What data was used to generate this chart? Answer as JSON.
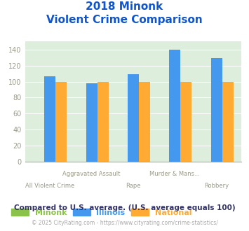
{
  "title_line1": "2018 Minonk",
  "title_line2": "Violent Crime Comparison",
  "categories": [
    "All Violent Crime",
    "Aggravated Assault",
    "Rape",
    "Murder & Mans...",
    "Robbery"
  ],
  "cat_line1": [
    "",
    "Aggravated Assault",
    "",
    "Murder & Mans...",
    ""
  ],
  "cat_line2": [
    "All Violent Crime",
    "",
    "Rape",
    "",
    "Robbery"
  ],
  "minonk_values": [
    0,
    0,
    0,
    0,
    0
  ],
  "illinois_values": [
    107,
    98,
    109,
    140,
    129
  ],
  "national_values": [
    100,
    100,
    100,
    100,
    100
  ],
  "minonk_color": "#8bc34a",
  "illinois_color": "#4499ee",
  "national_color": "#ffaa33",
  "ylim": [
    0,
    150
  ],
  "yticks": [
    0,
    20,
    40,
    60,
    80,
    100,
    120,
    140
  ],
  "background_color": "#ddeedd",
  "title_color": "#1155cc",
  "axis_label_color": "#999988",
  "legend_labels": [
    "Minonk",
    "Illinois",
    "National"
  ],
  "legend_colors": [
    "#8bc34a",
    "#4499ee",
    "#ffaa33"
  ],
  "footnote1": "Compared to U.S. average. (U.S. average equals 100)",
  "footnote2": "© 2025 CityRating.com - https://www.cityrating.com/crime-statistics/",
  "footnote1_color": "#333366",
  "footnote2_color": "#aaaaaa"
}
